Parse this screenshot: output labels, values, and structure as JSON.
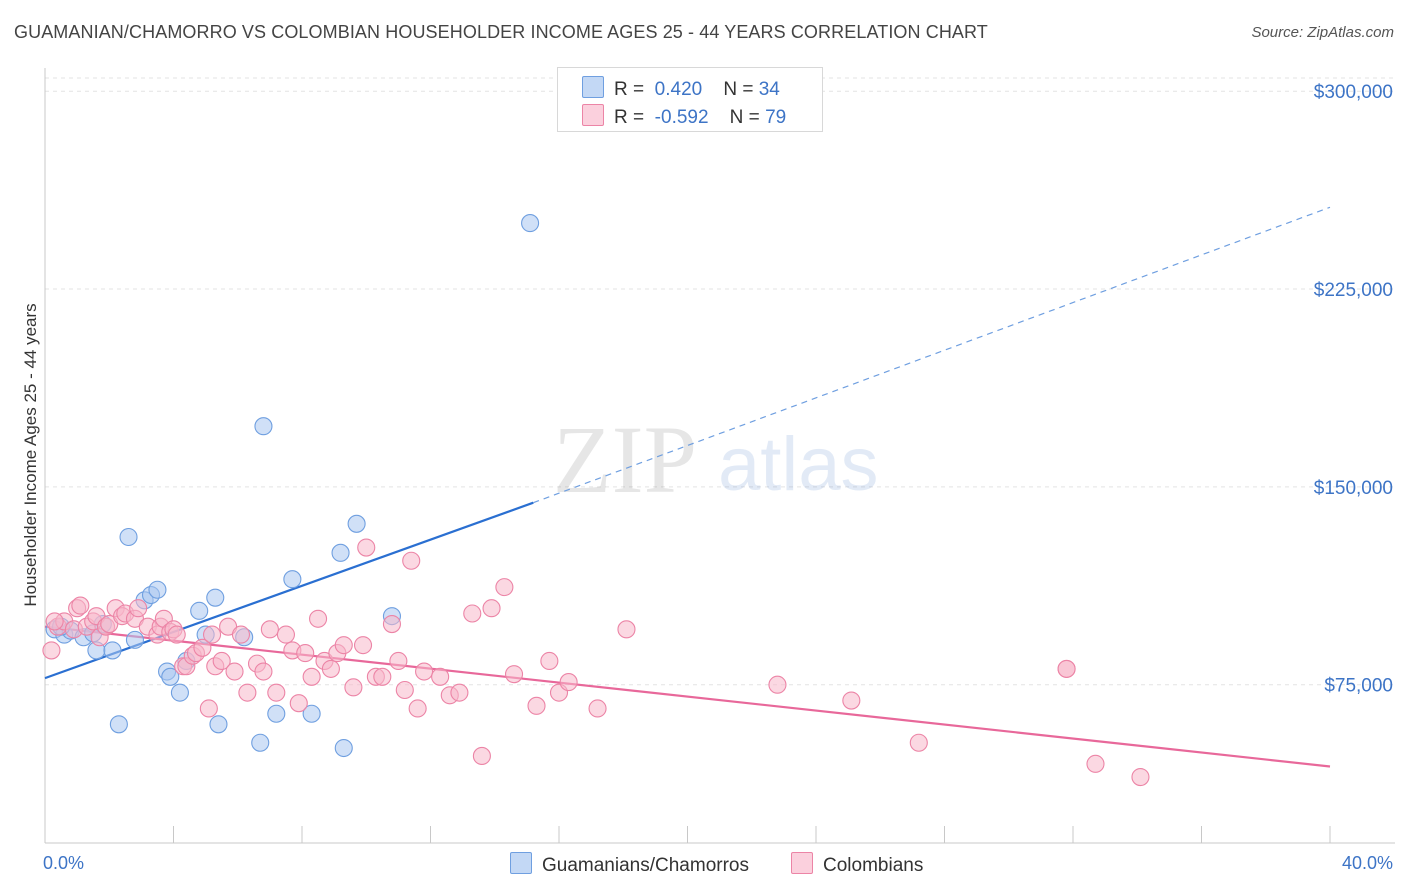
{
  "header": {
    "title": "GUAMANIAN/CHAMORRO VS COLOMBIAN HOUSEHOLDER INCOME AGES 25 - 44 YEARS CORRELATION CHART",
    "source": "Source: ZipAtlas.com"
  },
  "watermark": {
    "zip": "ZIP",
    "atlas": "atlas"
  },
  "legend": {
    "r_label": "R =",
    "n_label": "N =",
    "rows": [
      {
        "r": "0.420",
        "n": "34",
        "color": "#a9c6f0"
      },
      {
        "r": "-0.592",
        "n": "79",
        "color": "#f7b8cb"
      }
    ]
  },
  "bottom_legend": [
    {
      "label": "Guamanians/Chamorros",
      "color": "#a9c6f0"
    },
    {
      "label": "Colombians",
      "color": "#f7b8cb"
    }
  ],
  "chart_data": {
    "type": "scatter",
    "title": "GUAMANIAN/CHAMORRO VS COLOMBIAN HOUSEHOLDER INCOME AGES 25 - 44 YEARS CORRELATION CHART",
    "ylabel": "Householder Income Ages 25 - 44 years",
    "xlim": [
      0,
      40
    ],
    "ylim": [
      15000,
      305000
    ],
    "x_tick_labels": [
      "0.0%",
      "40.0%"
    ],
    "y_ticks": [
      75000,
      150000,
      225000,
      300000
    ],
    "y_tick_labels": [
      "$75,000",
      "$150,000",
      "$225,000",
      "$300,000"
    ],
    "grid": true,
    "legend_position": "top-center",
    "series": [
      {
        "name": "Guamanians/Chamorros",
        "color": "#6f9fe0",
        "fill": "#a9c6f0",
        "r": 0.42,
        "n": 34,
        "trend": {
          "x0": 0,
          "y0": 77500,
          "x1": 15.2,
          "y1": 144000,
          "dash_to_x": 40,
          "dash_to_y": 256000
        },
        "points": [
          [
            0.3,
            96000
          ],
          [
            0.6,
            94000
          ],
          [
            0.8,
            95500
          ],
          [
            1.2,
            93000
          ],
          [
            1.5,
            94500
          ],
          [
            1.6,
            88000
          ],
          [
            1.8,
            98000
          ],
          [
            2.1,
            88000
          ],
          [
            2.3,
            60000
          ],
          [
            2.6,
            131000
          ],
          [
            2.8,
            92000
          ],
          [
            3.1,
            107000
          ],
          [
            3.3,
            109000
          ],
          [
            3.5,
            111000
          ],
          [
            3.8,
            80000
          ],
          [
            3.9,
            78000
          ],
          [
            4.2,
            72000
          ],
          [
            4.4,
            84000
          ],
          [
            4.8,
            103000
          ],
          [
            5.0,
            94000
          ],
          [
            5.3,
            108000
          ],
          [
            5.4,
            60000
          ],
          [
            6.2,
            93000
          ],
          [
            6.7,
            53000
          ],
          [
            6.8,
            173000
          ],
          [
            7.2,
            64000
          ],
          [
            7.7,
            115000
          ],
          [
            8.3,
            64000
          ],
          [
            9.2,
            125000
          ],
          [
            9.3,
            51000
          ],
          [
            9.7,
            136000
          ],
          [
            10.8,
            101000
          ],
          [
            15.1,
            250000
          ],
          [
            0.5,
            97000
          ]
        ]
      },
      {
        "name": "Colombians",
        "color": "#ec84a6",
        "fill": "#f7b8cb",
        "r": -0.592,
        "n": 79,
        "trend": {
          "x0": 0,
          "y0": 97000,
          "x1": 40,
          "y1": 44000
        },
        "points": [
          [
            0.2,
            88000
          ],
          [
            0.4,
            97000
          ],
          [
            0.6,
            99000
          ],
          [
            0.9,
            96000
          ],
          [
            1.0,
            104000
          ],
          [
            1.1,
            105000
          ],
          [
            1.3,
            97000
          ],
          [
            1.5,
            99000
          ],
          [
            1.6,
            101000
          ],
          [
            1.7,
            93000
          ],
          [
            1.9,
            97000
          ],
          [
            2.0,
            98000
          ],
          [
            2.2,
            104000
          ],
          [
            2.4,
            101000
          ],
          [
            2.5,
            102000
          ],
          [
            2.8,
            100000
          ],
          [
            2.9,
            104000
          ],
          [
            3.2,
            97000
          ],
          [
            3.5,
            94000
          ],
          [
            3.6,
            97000
          ],
          [
            3.7,
            100000
          ],
          [
            3.9,
            95000
          ],
          [
            4.0,
            96000
          ],
          [
            4.1,
            94000
          ],
          [
            4.3,
            82000
          ],
          [
            4.4,
            82000
          ],
          [
            4.6,
            86000
          ],
          [
            4.7,
            87000
          ],
          [
            4.9,
            89000
          ],
          [
            5.1,
            66000
          ],
          [
            5.2,
            94000
          ],
          [
            5.3,
            82000
          ],
          [
            5.5,
            84000
          ],
          [
            5.7,
            97000
          ],
          [
            5.9,
            80000
          ],
          [
            6.1,
            94000
          ],
          [
            6.3,
            72000
          ],
          [
            6.6,
            83000
          ],
          [
            6.8,
            80000
          ],
          [
            7.0,
            96000
          ],
          [
            7.2,
            72000
          ],
          [
            7.5,
            94000
          ],
          [
            7.7,
            88000
          ],
          [
            7.9,
            68000
          ],
          [
            8.1,
            87000
          ],
          [
            8.3,
            78000
          ],
          [
            8.5,
            100000
          ],
          [
            8.7,
            84000
          ],
          [
            8.9,
            81000
          ],
          [
            9.1,
            87000
          ],
          [
            9.3,
            90000
          ],
          [
            9.6,
            74000
          ],
          [
            9.9,
            90000
          ],
          [
            10.0,
            127000
          ],
          [
            10.3,
            78000
          ],
          [
            10.5,
            78000
          ],
          [
            10.8,
            98000
          ],
          [
            11.0,
            84000
          ],
          [
            11.2,
            73000
          ],
          [
            11.4,
            122000
          ],
          [
            11.6,
            66000
          ],
          [
            11.8,
            80000
          ],
          [
            12.3,
            78000
          ],
          [
            12.6,
            71000
          ],
          [
            12.9,
            72000
          ],
          [
            13.3,
            102000
          ],
          [
            13.6,
            48000
          ],
          [
            13.9,
            104000
          ],
          [
            14.3,
            112000
          ],
          [
            14.6,
            79000
          ],
          [
            15.3,
            67000
          ],
          [
            15.7,
            84000
          ],
          [
            16.0,
            72000
          ],
          [
            16.3,
            76000
          ],
          [
            17.2,
            66000
          ],
          [
            18.1,
            96000
          ],
          [
            22.8,
            75000
          ],
          [
            25.1,
            69000
          ],
          [
            31.8,
            81000
          ]
        ]
      },
      {
        "name": "Colombians-extra",
        "legend": false,
        "color": "#ec84a6",
        "fill": "#f7b8cb",
        "points": [
          [
            27.2,
            53000
          ],
          [
            31.8,
            81000
          ],
          [
            32.7,
            45000
          ],
          [
            34.1,
            40000
          ],
          [
            0.3,
            99000
          ]
        ]
      }
    ]
  }
}
